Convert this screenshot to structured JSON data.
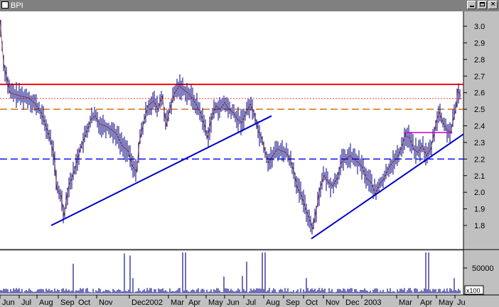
{
  "window": {
    "title": "BPI",
    "close_glyph": "×"
  },
  "chart_data": {
    "type": "candlestick",
    "title": "BPI",
    "price_axis": {
      "range": [
        1.7,
        3.1
      ],
      "ticks": [
        1.8,
        1.9,
        2.0,
        2.1,
        2.2,
        2.3,
        2.4,
        2.5,
        2.6,
        2.7,
        2.8,
        2.9,
        3.0
      ],
      "tick_labels": [
        "1.8",
        "1.9",
        "2.0",
        "2.1",
        "2.2",
        "2.3",
        "2.4",
        "2.5",
        "2.6",
        "2.7",
        "2.8",
        "2.9",
        "3.0"
      ]
    },
    "time_axis": {
      "labels": [
        "Jun",
        "Jul",
        "Aug",
        "Sep",
        "Oct",
        "Nov",
        "Dec2002",
        "Mar",
        "Apr",
        "May",
        "Jun",
        "Jul",
        "Aug",
        "Sep",
        "Oct",
        "Nov",
        "Dec",
        "2003",
        "Mar",
        "Apr",
        "May",
        "Ju"
      ]
    },
    "price_path": [
      [
        0,
        3.04
      ],
      [
        5,
        2.78
      ],
      [
        10,
        2.68
      ],
      [
        14,
        2.6
      ],
      [
        28,
        2.58
      ],
      [
        40,
        2.57
      ],
      [
        50,
        2.53
      ],
      [
        58,
        2.48
      ],
      [
        66,
        2.38
      ],
      [
        72,
        2.3
      ],
      [
        76,
        2.22
      ],
      [
        80,
        2.02
      ],
      [
        86,
        1.98
      ],
      [
        90,
        1.86
      ],
      [
        96,
        2.03
      ],
      [
        104,
        2.12
      ],
      [
        112,
        2.25
      ],
      [
        120,
        2.34
      ],
      [
        128,
        2.44
      ],
      [
        134,
        2.46
      ],
      [
        140,
        2.41
      ],
      [
        148,
        2.4
      ],
      [
        156,
        2.38
      ],
      [
        164,
        2.35
      ],
      [
        172,
        2.28
      ],
      [
        180,
        2.25
      ],
      [
        186,
        2.16
      ],
      [
        192,
        2.12
      ],
      [
        196,
        2.3
      ],
      [
        200,
        2.38
      ],
      [
        208,
        2.52
      ],
      [
        216,
        2.55
      ],
      [
        222,
        2.5
      ],
      [
        228,
        2.58
      ],
      [
        234,
        2.4
      ],
      [
        240,
        2.52
      ],
      [
        246,
        2.6
      ],
      [
        252,
        2.64
      ],
      [
        258,
        2.62
      ],
      [
        264,
        2.6
      ],
      [
        270,
        2.57
      ],
      [
        276,
        2.53
      ],
      [
        282,
        2.48
      ],
      [
        288,
        2.4
      ],
      [
        292,
        2.33
      ],
      [
        298,
        2.45
      ],
      [
        304,
        2.52
      ],
      [
        310,
        2.5
      ],
      [
        316,
        2.54
      ],
      [
        322,
        2.5
      ],
      [
        328,
        2.48
      ],
      [
        334,
        2.44
      ],
      [
        340,
        2.42
      ],
      [
        346,
        2.48
      ],
      [
        352,
        2.53
      ],
      [
        358,
        2.47
      ],
      [
        364,
        2.36
      ],
      [
        368,
        2.33
      ],
      [
        372,
        2.26
      ],
      [
        378,
        2.18
      ],
      [
        384,
        2.22
      ],
      [
        390,
        2.26
      ],
      [
        396,
        2.25
      ],
      [
        402,
        2.24
      ],
      [
        408,
        2.2
      ],
      [
        414,
        2.12
      ],
      [
        418,
        2.03
      ],
      [
        424,
        1.98
      ],
      [
        430,
        1.9
      ],
      [
        436,
        1.83
      ],
      [
        440,
        1.78
      ],
      [
        446,
        1.92
      ],
      [
        450,
        2.02
      ],
      [
        456,
        2.1
      ],
      [
        462,
        2.06
      ],
      [
        468,
        2.04
      ],
      [
        474,
        2.08
      ],
      [
        480,
        2.18
      ],
      [
        486,
        2.2
      ],
      [
        492,
        2.22
      ],
      [
        498,
        2.2
      ],
      [
        504,
        2.18
      ],
      [
        510,
        2.15
      ],
      [
        516,
        2.08
      ],
      [
        522,
        2.06
      ],
      [
        528,
        1.99
      ],
      [
        534,
        2.05
      ],
      [
        540,
        2.08
      ],
      [
        546,
        2.14
      ],
      [
        552,
        2.18
      ],
      [
        558,
        2.2
      ],
      [
        564,
        2.26
      ],
      [
        570,
        2.34
      ],
      [
        576,
        2.33
      ],
      [
        582,
        2.26
      ],
      [
        588,
        2.24
      ],
      [
        594,
        2.28
      ],
      [
        600,
        2.22
      ],
      [
        606,
        2.26
      ],
      [
        610,
        2.34
      ],
      [
        614,
        2.43
      ],
      [
        618,
        2.48
      ],
      [
        622,
        2.43
      ],
      [
        628,
        2.38
      ],
      [
        634,
        2.36
      ],
      [
        638,
        2.44
      ],
      [
        642,
        2.52
      ],
      [
        644,
        2.62
      ],
      [
        648,
        2.58
      ]
    ],
    "horizontal_lines": [
      {
        "name": "resistance",
        "value": 2.65,
        "color": "#ff0000",
        "style": "solid"
      },
      {
        "name": "minor-resistance",
        "value": 2.565,
        "color": "#ff6060",
        "style": "dotted"
      },
      {
        "name": "mid-level",
        "value": 2.5,
        "color": "#cc6600",
        "style": "dashed"
      },
      {
        "name": "support",
        "value": 2.2,
        "color": "#0000ff",
        "style": "dashed"
      }
    ],
    "trend_lines": [
      {
        "name": "trendline-2002",
        "x1": 72,
        "y1": 1.8,
        "x2": 382,
        "y2": 2.46,
        "color": "#0000cc"
      },
      {
        "name": "trendline-2003",
        "x1": 438,
        "y1": 1.72,
        "x2": 652,
        "y2": 2.35,
        "color": "#0000cc"
      }
    ],
    "box_line": {
      "x1": 570,
      "x2": 636,
      "top": 2.36,
      "bottom": 2.34,
      "color": "#cc00cc"
    },
    "volume": {
      "label": "50000",
      "multiplier_label": "x100",
      "range": [
        0,
        80000
      ],
      "spikes": [
        {
          "x": 104,
          "v": 58000
        },
        {
          "x": 175,
          "v": 78000
        },
        {
          "x": 183,
          "v": 74000
        },
        {
          "x": 188,
          "v": 30000
        },
        {
          "x": 258,
          "v": 80000
        },
        {
          "x": 262,
          "v": 80000
        },
        {
          "x": 316,
          "v": 33000
        },
        {
          "x": 342,
          "v": 34000
        },
        {
          "x": 348,
          "v": 62000
        },
        {
          "x": 370,
          "v": 80000
        },
        {
          "x": 374,
          "v": 80000
        },
        {
          "x": 431,
          "v": 30000
        },
        {
          "x": 600,
          "v": 80000
        },
        {
          "x": 604,
          "v": 80000
        },
        {
          "x": 640,
          "v": 30000
        }
      ]
    },
    "colors": {
      "background": "#ffffff",
      "candles": "#000080",
      "price_line": "#800000",
      "volume": "#7070b8",
      "axis": "#000000",
      "grid_separator": "#000000"
    }
  }
}
